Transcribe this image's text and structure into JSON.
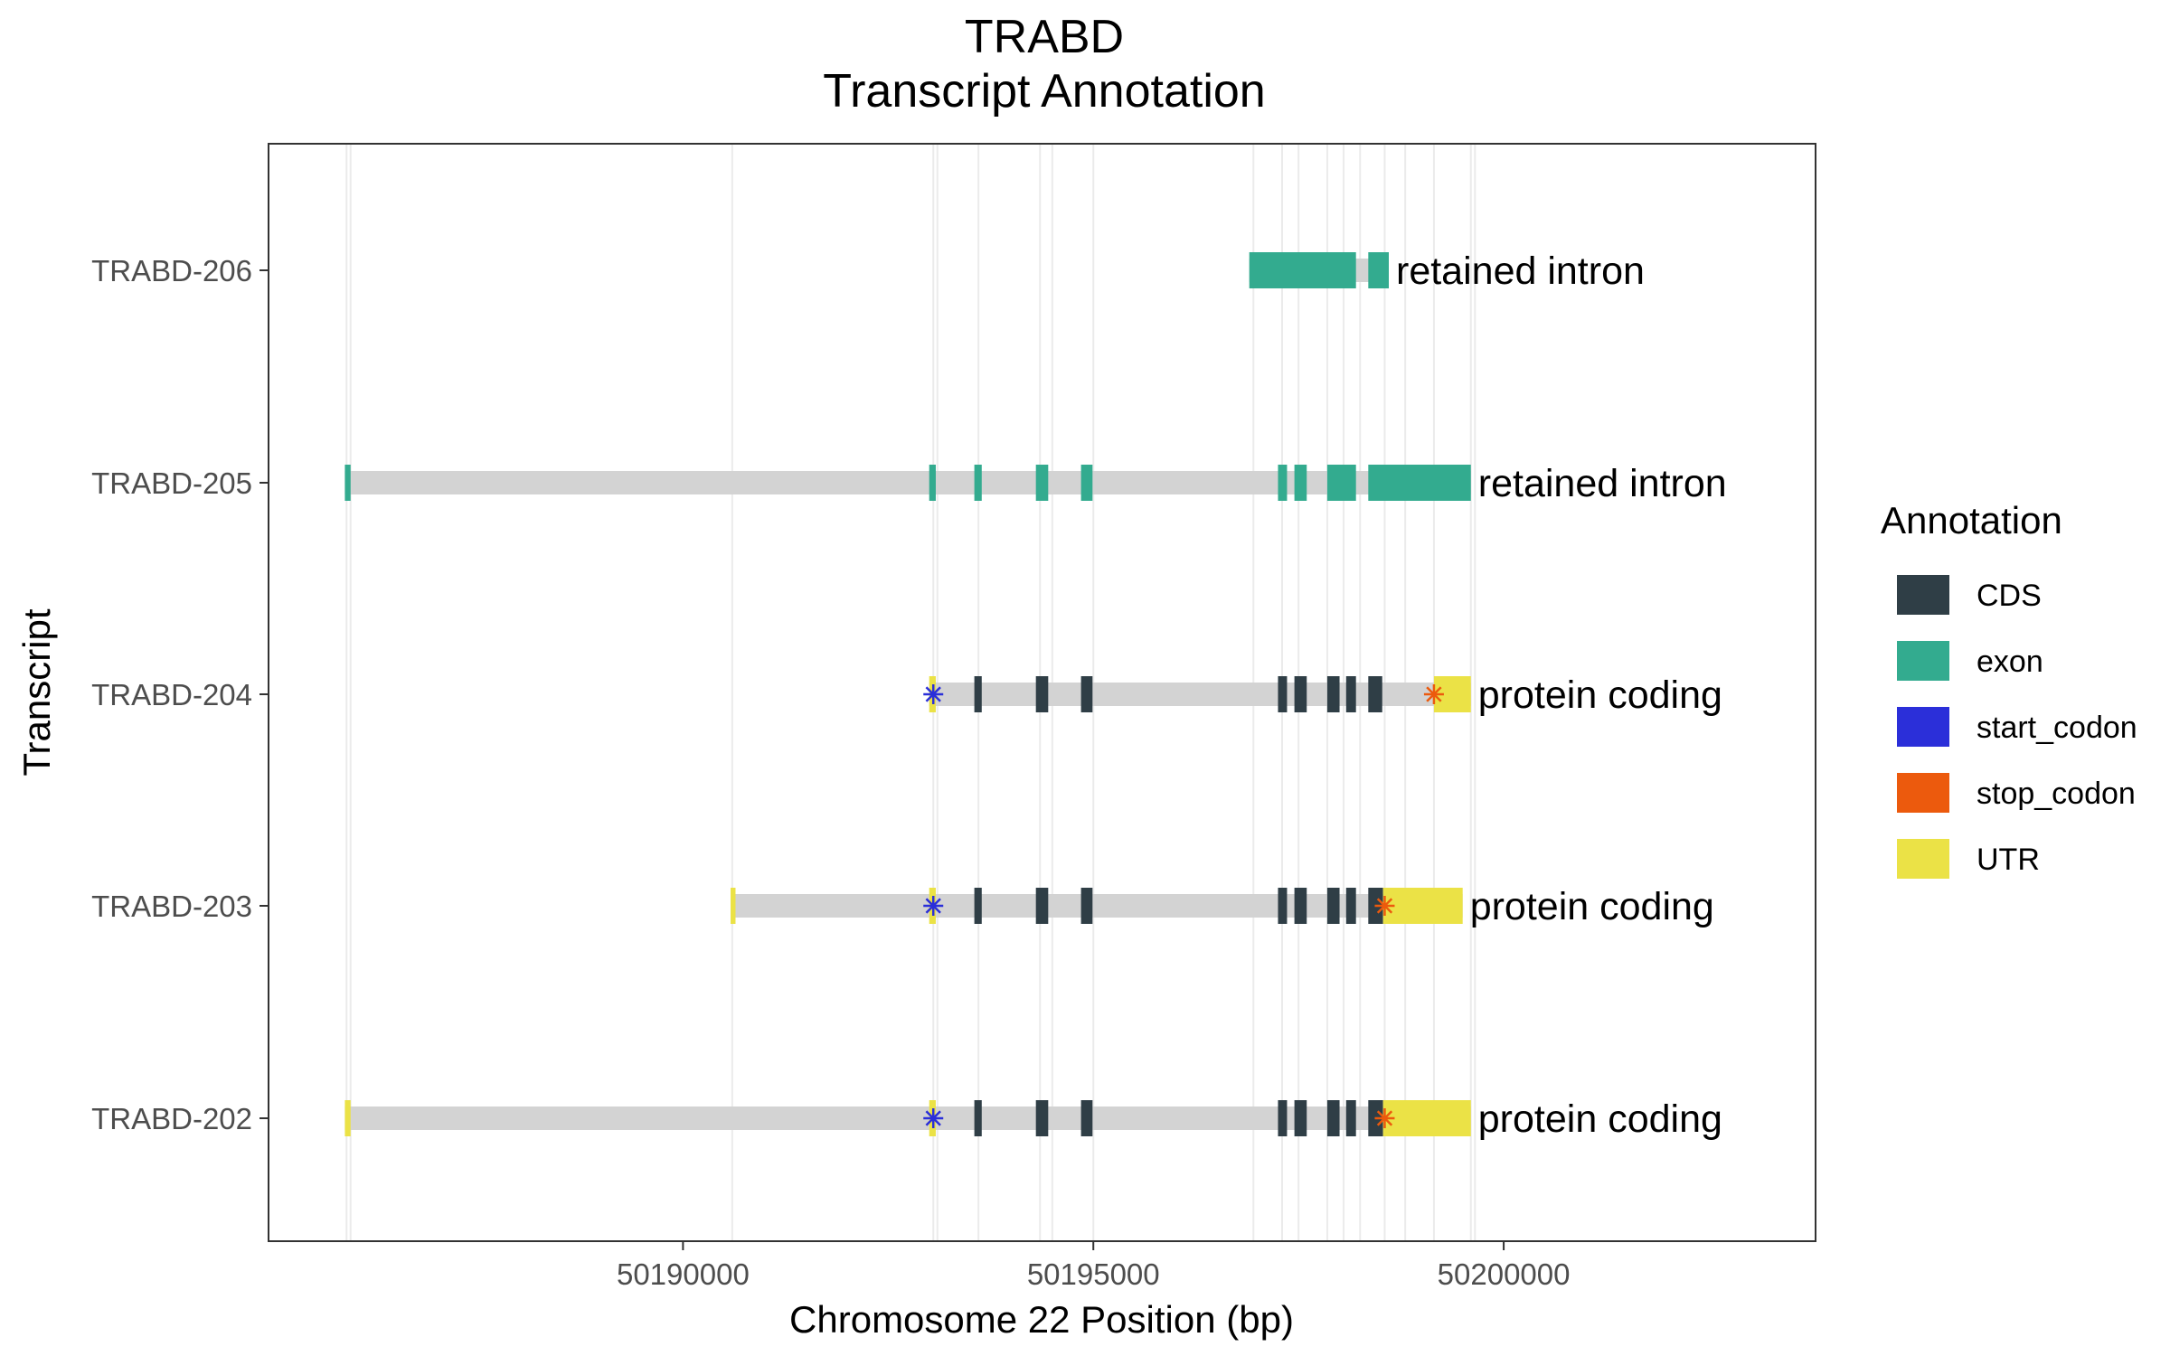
{
  "chart_data": {
    "type": "gene_track",
    "title": "TRABD",
    "subtitle": "Transcript Annotation",
    "xlabel": "Chromosome 22 Position (bp)",
    "ylabel": "Transcript",
    "xlim": [
      50184950,
      50203800
    ],
    "x_ticks": [
      50190000,
      50195000,
      50200000
    ],
    "x_tick_labels": [
      "50190000",
      "50195000",
      "50200000"
    ],
    "grid_x": [
      50185900,
      50185950,
      50190600,
      50193050,
      50193100,
      50193600,
      50194350,
      50194500,
      50195000,
      50196950,
      50197300,
      50197500,
      50197850,
      50198050,
      50198250,
      50198550,
      50198800,
      50199150,
      50199600,
      50199650
    ],
    "colors": {
      "CDS": "#2f3e46",
      "exon": "#33ab8f",
      "start_codon": "#2b2fd9",
      "stop_codon": "#ec5a0d",
      "UTR": "#ebe246",
      "intron": "#d3d3d3"
    },
    "legend": {
      "title": "Annotation",
      "placement": "right",
      "entries": [
        "CDS",
        "exon",
        "start_codon",
        "stop_codon",
        "UTR"
      ]
    },
    "transcripts": [
      {
        "name": "TRABD-206",
        "biotype": "retained intron",
        "start": 50196900,
        "end": 50198600,
        "features": [
          {
            "type": "exon",
            "start": 50196900,
            "end": 50198200
          },
          {
            "type": "exon",
            "start": 50198350,
            "end": 50198600
          }
        ],
        "start_codon": null,
        "stop_codon": null
      },
      {
        "name": "TRABD-205",
        "biotype": "retained intron",
        "start": 50185880,
        "end": 50199600,
        "features": [
          {
            "type": "exon",
            "start": 50185880,
            "end": 50185950
          },
          {
            "type": "exon",
            "start": 50193000,
            "end": 50193080
          },
          {
            "type": "exon",
            "start": 50193550,
            "end": 50193640
          },
          {
            "type": "exon",
            "start": 50194300,
            "end": 50194450
          },
          {
            "type": "exon",
            "start": 50194850,
            "end": 50194990
          },
          {
            "type": "exon",
            "start": 50197250,
            "end": 50197360
          },
          {
            "type": "exon",
            "start": 50197450,
            "end": 50197600
          },
          {
            "type": "exon",
            "start": 50197850,
            "end": 50198200
          },
          {
            "type": "exon",
            "start": 50198350,
            "end": 50199600
          }
        ],
        "start_codon": null,
        "stop_codon": null
      },
      {
        "name": "TRABD-204",
        "biotype": "protein coding",
        "start": 50193000,
        "end": 50199600,
        "features": [
          {
            "type": "UTR",
            "start": 50193000,
            "end": 50193080
          },
          {
            "type": "CDS",
            "start": 50193550,
            "end": 50193640
          },
          {
            "type": "CDS",
            "start": 50194300,
            "end": 50194450
          },
          {
            "type": "CDS",
            "start": 50194850,
            "end": 50194990
          },
          {
            "type": "CDS",
            "start": 50197250,
            "end": 50197360
          },
          {
            "type": "CDS",
            "start": 50197450,
            "end": 50197600
          },
          {
            "type": "CDS",
            "start": 50197850,
            "end": 50198000
          },
          {
            "type": "CDS",
            "start": 50198080,
            "end": 50198200
          },
          {
            "type": "CDS",
            "start": 50198350,
            "end": 50198520
          },
          {
            "type": "UTR",
            "start": 50199150,
            "end": 50199600
          }
        ],
        "start_codon": 50193050,
        "stop_codon": 50199150
      },
      {
        "name": "TRABD-203",
        "biotype": "protein coding",
        "start": 50190580,
        "end": 50199500,
        "features": [
          {
            "type": "UTR",
            "start": 50190580,
            "end": 50190640
          },
          {
            "type": "UTR",
            "start": 50193000,
            "end": 50193080
          },
          {
            "type": "CDS",
            "start": 50193550,
            "end": 50193640
          },
          {
            "type": "CDS",
            "start": 50194300,
            "end": 50194450
          },
          {
            "type": "CDS",
            "start": 50194850,
            "end": 50194990
          },
          {
            "type": "CDS",
            "start": 50197250,
            "end": 50197360
          },
          {
            "type": "CDS",
            "start": 50197450,
            "end": 50197600
          },
          {
            "type": "CDS",
            "start": 50197850,
            "end": 50198000
          },
          {
            "type": "CDS",
            "start": 50198080,
            "end": 50198200
          },
          {
            "type": "CDS",
            "start": 50198350,
            "end": 50198530
          },
          {
            "type": "UTR",
            "start": 50198530,
            "end": 50199500
          }
        ],
        "start_codon": 50193050,
        "stop_codon": 50198550
      },
      {
        "name": "TRABD-202",
        "biotype": "protein coding",
        "start": 50185880,
        "end": 50199600,
        "features": [
          {
            "type": "UTR",
            "start": 50185880,
            "end": 50185950
          },
          {
            "type": "UTR",
            "start": 50193000,
            "end": 50193080
          },
          {
            "type": "CDS",
            "start": 50193550,
            "end": 50193640
          },
          {
            "type": "CDS",
            "start": 50194300,
            "end": 50194450
          },
          {
            "type": "CDS",
            "start": 50194850,
            "end": 50194990
          },
          {
            "type": "CDS",
            "start": 50197250,
            "end": 50197360
          },
          {
            "type": "CDS",
            "start": 50197450,
            "end": 50197600
          },
          {
            "type": "CDS",
            "start": 50197850,
            "end": 50198000
          },
          {
            "type": "CDS",
            "start": 50198080,
            "end": 50198200
          },
          {
            "type": "CDS",
            "start": 50198350,
            "end": 50198530
          },
          {
            "type": "UTR",
            "start": 50198530,
            "end": 50199600
          }
        ],
        "start_codon": 50193050,
        "stop_codon": 50198550
      }
    ]
  }
}
